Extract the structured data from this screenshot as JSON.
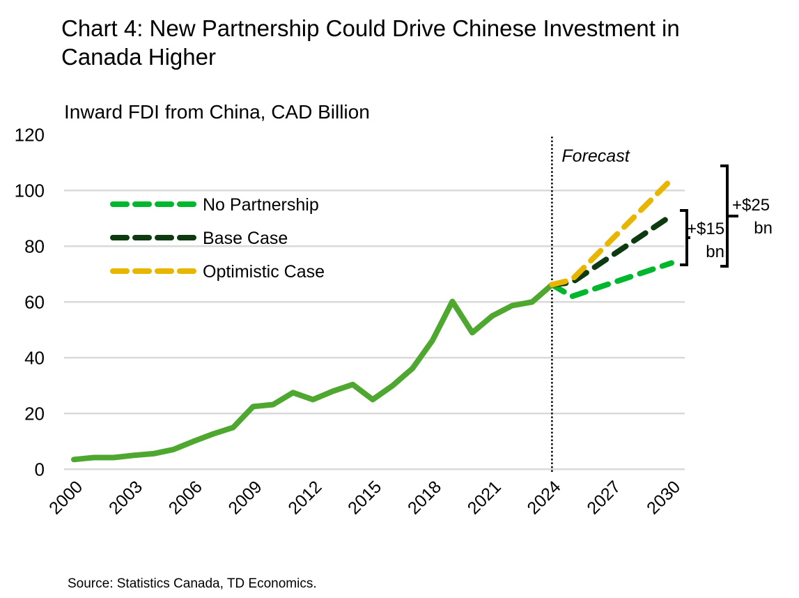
{
  "chart_data": {
    "type": "line",
    "title": "Chart 4: New Partnership Could Drive Chinese Investment in Canada Higher",
    "subtitle": "Inward FDI from China, CAD Billion",
    "source": "Source: Statistics Canada, TD Economics.",
    "xlabel": "",
    "ylabel": "",
    "ylim": [
      0,
      120
    ],
    "yticks": [
      0,
      20,
      40,
      60,
      80,
      100,
      120
    ],
    "xlim": [
      2000,
      2030
    ],
    "xticks": [
      2000,
      2003,
      2006,
      2009,
      2012,
      2015,
      2018,
      2021,
      2024,
      2027,
      2030
    ],
    "grid": "horizontal",
    "legend_position": "top-left",
    "forecast_marker": {
      "x": 2024,
      "label": "Forecast"
    },
    "history": {
      "color": "#4EA72E",
      "x": [
        2000,
        2001,
        2002,
        2003,
        2004,
        2005,
        2006,
        2007,
        2008,
        2009,
        2010,
        2011,
        2012,
        2013,
        2014,
        2015,
        2016,
        2017,
        2018,
        2019,
        2020,
        2021,
        2022,
        2023,
        2024
      ],
      "values": [
        3.5,
        4.2,
        4.2,
        5.0,
        5.6,
        7.1,
        10,
        12.7,
        15,
        22.5,
        23.2,
        27.5,
        25,
        28,
        30.4,
        25,
        30,
        36.2,
        46.2,
        60.2,
        49,
        55,
        58.7,
        60,
        66.2
      ]
    },
    "series": [
      {
        "name": "No Partnership",
        "color": "#00B72E",
        "x": [
          2024,
          2025,
          2026,
          2027,
          2028,
          2029,
          2030
        ],
        "values": [
          66.2,
          62,
          64.4,
          66.8,
          69.2,
          71.6,
          74
        ]
      },
      {
        "name": "Base Case",
        "color": "#0E3A12",
        "x": [
          2024,
          2025,
          2026,
          2027,
          2028,
          2029,
          2030
        ],
        "values": [
          66.2,
          67,
          71.8,
          76.6,
          81.4,
          86.2,
          91
        ]
      },
      {
        "name": "Optimistic Case",
        "color": "#E8B600",
        "x": [
          2024,
          2025,
          2026,
          2027,
          2028,
          2029,
          2030
        ],
        "values": [
          66.2,
          68,
          75.2,
          82.4,
          89.6,
          96.8,
          104
        ]
      }
    ],
    "annotations": [
      {
        "line1": "+$15",
        "line2": "bn"
      },
      {
        "line1": "+$25",
        "line2": "bn"
      }
    ]
  }
}
